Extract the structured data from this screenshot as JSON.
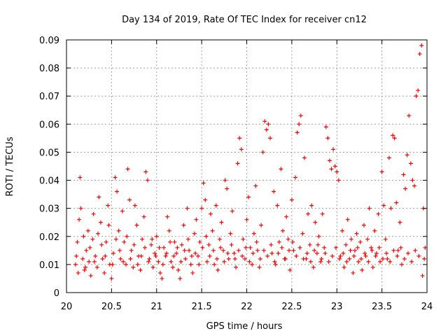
{
  "chart_data": {
    "type": "scatter",
    "title": "Day 134 of 2019, Rate Of TEC Index for receiver cn12",
    "xlabel": "GPS time / hours",
    "ylabel": "ROTI / TECUs",
    "xlim": [
      20,
      24
    ],
    "ylim": [
      0,
      0.09
    ],
    "xticks": [
      20,
      20.5,
      21,
      21.5,
      22,
      22.5,
      23,
      23.5,
      24
    ],
    "xtick_labels": [
      "20",
      "20.5",
      "21",
      "21.5",
      "22",
      "22.5",
      "23",
      "23.5",
      "24"
    ],
    "yticks": [
      0,
      0.01,
      0.02,
      0.03,
      0.04,
      0.05,
      0.06,
      0.07,
      0.08,
      0.09
    ],
    "ytick_labels": [
      "0",
      "0.01",
      "0.02",
      "0.03",
      "0.04",
      "0.05",
      "0.06",
      "0.07",
      "0.08",
      "0.09"
    ],
    "grid": true,
    "marker": "plus",
    "color": "#ff0000",
    "series": [
      {
        "name": "ROTI",
        "points": [
          [
            20.1,
            0.01
          ],
          [
            20.12,
            0.018
          ],
          [
            20.14,
            0.026
          ],
          [
            20.15,
            0.041
          ],
          [
            20.16,
            0.03
          ],
          [
            20.18,
            0.012
          ],
          [
            20.2,
            0.008
          ],
          [
            20.22,
            0.015
          ],
          [
            20.24,
            0.022
          ],
          [
            20.25,
            0.011
          ],
          [
            20.27,
            0.006
          ],
          [
            20.29,
            0.019
          ],
          [
            20.3,
            0.028
          ],
          [
            20.32,
            0.013
          ],
          [
            20.34,
            0.009
          ],
          [
            20.36,
            0.034
          ],
          [
            20.38,
            0.025
          ],
          [
            20.4,
            0.012
          ],
          [
            20.42,
            0.007
          ],
          [
            20.44,
            0.018
          ],
          [
            20.46,
            0.031
          ],
          [
            20.48,
            0.01
          ],
          [
            20.5,
            0.005
          ],
          [
            20.52,
            0.014
          ],
          [
            20.54,
            0.041
          ],
          [
            20.56,
            0.036
          ],
          [
            20.58,
            0.022
          ],
          [
            20.6,
            0.012
          ],
          [
            20.62,
            0.029
          ],
          [
            20.64,
            0.018
          ],
          [
            20.66,
            0.01
          ],
          [
            20.68,
            0.044
          ],
          [
            20.7,
            0.033
          ],
          [
            20.72,
            0.015
          ],
          [
            20.74,
            0.009
          ],
          [
            20.76,
            0.031
          ],
          [
            20.78,
            0.024
          ],
          [
            20.8,
            0.013
          ],
          [
            20.82,
            0.008
          ],
          [
            20.84,
            0.019
          ],
          [
            20.86,
            0.027
          ],
          [
            20.88,
            0.043
          ],
          [
            20.9,
            0.04
          ],
          [
            20.92,
            0.012
          ],
          [
            20.94,
            0.017
          ],
          [
            20.96,
            0.009
          ],
          [
            20.98,
            0.014
          ],
          [
            21.0,
            0.02
          ],
          [
            21.02,
            0.011
          ],
          [
            21.04,
            0.007
          ],
          [
            21.06,
            0.005
          ],
          [
            21.08,
            0.016
          ],
          [
            21.1,
            0.013
          ],
          [
            21.12,
            0.027
          ],
          [
            21.14,
            0.022
          ],
          [
            21.16,
            0.011
          ],
          [
            21.18,
            0.009
          ],
          [
            21.2,
            0.018
          ],
          [
            21.22,
            0.014
          ],
          [
            21.24,
            0.008
          ],
          [
            21.26,
            0.005
          ],
          [
            21.28,
            0.017
          ],
          [
            21.3,
            0.024
          ],
          [
            21.32,
            0.012
          ],
          [
            21.34,
            0.03
          ],
          [
            21.36,
            0.015
          ],
          [
            21.38,
            0.01
          ],
          [
            21.4,
            0.007
          ],
          [
            21.42,
            0.021
          ],
          [
            21.44,
            0.026
          ],
          [
            21.46,
            0.013
          ],
          [
            21.48,
            0.018
          ],
          [
            21.5,
            0.03
          ],
          [
            21.52,
            0.039
          ],
          [
            21.54,
            0.033
          ],
          [
            21.56,
            0.011
          ],
          [
            21.58,
            0.017
          ],
          [
            21.6,
            0.028
          ],
          [
            21.62,
            0.022
          ],
          [
            21.64,
            0.01
          ],
          [
            21.66,
            0.031
          ],
          [
            21.68,
            0.008
          ],
          [
            21.7,
            0.019
          ],
          [
            21.72,
            0.025
          ],
          [
            21.74,
            0.015
          ],
          [
            21.76,
            0.04
          ],
          [
            21.78,
            0.037
          ],
          [
            21.8,
            0.012
          ],
          [
            21.82,
            0.021
          ],
          [
            21.84,
            0.029
          ],
          [
            21.86,
            0.014
          ],
          [
            21.88,
            0.009
          ],
          [
            21.9,
            0.046
          ],
          [
            21.92,
            0.055
          ],
          [
            21.94,
            0.051
          ],
          [
            21.96,
            0.019
          ],
          [
            21.98,
            0.012
          ],
          [
            22.0,
            0.026
          ],
          [
            22.02,
            0.034
          ],
          [
            22.04,
            0.016
          ],
          [
            22.06,
            0.01
          ],
          [
            22.08,
            0.021
          ],
          [
            22.1,
            0.038
          ],
          [
            22.12,
            0.015
          ],
          [
            22.14,
            0.009
          ],
          [
            22.16,
            0.024
          ],
          [
            22.18,
            0.05
          ],
          [
            22.2,
            0.061
          ],
          [
            22.22,
            0.058
          ],
          [
            22.24,
            0.06
          ],
          [
            22.26,
            0.055
          ],
          [
            22.28,
            0.014
          ],
          [
            22.3,
            0.036
          ],
          [
            22.32,
            0.01
          ],
          [
            22.34,
            0.031
          ],
          [
            22.36,
            0.018
          ],
          [
            22.38,
            0.044
          ],
          [
            22.4,
            0.022
          ],
          [
            22.42,
            0.012
          ],
          [
            22.44,
            0.027
          ],
          [
            22.46,
            0.019
          ],
          [
            22.48,
            0.008
          ],
          [
            22.5,
            0.033
          ],
          [
            22.52,
            0.015
          ],
          [
            22.54,
            0.041
          ],
          [
            22.56,
            0.057
          ],
          [
            22.58,
            0.06
          ],
          [
            22.6,
            0.063
          ],
          [
            22.62,
            0.021
          ],
          [
            22.64,
            0.048
          ],
          [
            22.66,
            0.012
          ],
          [
            22.68,
            0.028
          ],
          [
            22.7,
            0.017
          ],
          [
            22.72,
            0.031
          ],
          [
            22.74,
            0.009
          ],
          [
            22.76,
            0.025
          ],
          [
            22.78,
            0.014
          ],
          [
            22.8,
            0.02
          ],
          [
            22.82,
            0.011
          ],
          [
            22.84,
            0.028
          ],
          [
            22.86,
            0.016
          ],
          [
            22.88,
            0.059
          ],
          [
            22.9,
            0.055
          ],
          [
            22.92,
            0.047
          ],
          [
            22.94,
            0.044
          ],
          [
            22.96,
            0.051
          ],
          [
            22.98,
            0.045
          ],
          [
            23.0,
            0.043
          ],
          [
            23.02,
            0.04
          ],
          [
            23.04,
            0.013
          ],
          [
            23.06,
            0.022
          ],
          [
            23.08,
            0.009
          ],
          [
            23.1,
            0.017
          ],
          [
            23.12,
            0.026
          ],
          [
            23.14,
            0.012
          ],
          [
            23.16,
            0.019
          ],
          [
            23.18,
            0.007
          ],
          [
            23.2,
            0.015
          ],
          [
            23.22,
            0.021
          ],
          [
            23.24,
            0.011
          ],
          [
            23.26,
            0.018
          ],
          [
            23.28,
            0.008
          ],
          [
            23.3,
            0.024
          ],
          [
            23.32,
            0.013
          ],
          [
            23.34,
            0.019
          ],
          [
            23.36,
            0.03
          ],
          [
            23.38,
            0.016
          ],
          [
            23.4,
            0.009
          ],
          [
            23.42,
            0.022
          ],
          [
            23.44,
            0.014
          ],
          [
            23.46,
            0.028
          ],
          [
            23.48,
            0.011
          ],
          [
            23.5,
            0.043
          ],
          [
            23.52,
            0.031
          ],
          [
            23.54,
            0.019
          ],
          [
            23.56,
            0.012
          ],
          [
            23.58,
            0.048
          ],
          [
            23.6,
            0.03
          ],
          [
            23.62,
            0.056
          ],
          [
            23.64,
            0.055
          ],
          [
            23.66,
            0.032
          ],
          [
            23.68,
            0.015
          ],
          [
            23.7,
            0.025
          ],
          [
            23.72,
            0.01
          ],
          [
            23.74,
            0.042
          ],
          [
            23.76,
            0.037
          ],
          [
            23.78,
            0.049
          ],
          [
            23.8,
            0.063
          ],
          [
            23.82,
            0.046
          ],
          [
            23.84,
            0.04
          ],
          [
            23.86,
            0.038
          ],
          [
            23.88,
            0.07
          ],
          [
            23.9,
            0.072
          ],
          [
            23.92,
            0.085
          ],
          [
            23.94,
            0.088
          ],
          [
            23.96,
            0.03
          ],
          [
            23.98,
            0.016
          ],
          [
            20.11,
            0.013
          ],
          [
            20.13,
            0.007
          ],
          [
            20.19,
            0.02
          ],
          [
            20.21,
            0.009
          ],
          [
            20.26,
            0.016
          ],
          [
            20.31,
            0.011
          ],
          [
            20.35,
            0.021
          ],
          [
            20.39,
            0.017
          ],
          [
            20.43,
            0.013
          ],
          [
            20.47,
            0.024
          ],
          [
            20.51,
            0.01
          ],
          [
            20.55,
            0.019
          ],
          [
            20.59,
            0.015
          ],
          [
            20.63,
            0.011
          ],
          [
            20.67,
            0.02
          ],
          [
            20.71,
            0.012
          ],
          [
            20.75,
            0.017
          ],
          [
            20.79,
            0.01
          ],
          [
            20.83,
            0.013
          ],
          [
            20.87,
            0.016
          ],
          [
            20.91,
            0.011
          ],
          [
            20.95,
            0.019
          ],
          [
            20.99,
            0.013
          ],
          [
            21.03,
            0.016
          ],
          [
            21.07,
            0.01
          ],
          [
            21.11,
            0.014
          ],
          [
            21.15,
            0.018
          ],
          [
            21.19,
            0.013
          ],
          [
            21.23,
            0.016
          ],
          [
            21.27,
            0.011
          ],
          [
            21.31,
            0.015
          ],
          [
            21.35,
            0.019
          ],
          [
            21.39,
            0.013
          ],
          [
            21.43,
            0.014
          ],
          [
            21.47,
            0.01
          ],
          [
            21.51,
            0.016
          ],
          [
            21.55,
            0.02
          ],
          [
            21.59,
            0.013
          ],
          [
            21.63,
            0.015
          ],
          [
            21.67,
            0.012
          ],
          [
            21.71,
            0.016
          ],
          [
            21.75,
            0.011
          ],
          [
            21.79,
            0.014
          ],
          [
            21.83,
            0.017
          ],
          [
            21.87,
            0.012
          ],
          [
            21.91,
            0.015
          ],
          [
            21.95,
            0.013
          ],
          [
            21.99,
            0.016
          ],
          [
            22.03,
            0.011
          ],
          [
            22.07,
            0.014
          ],
          [
            22.11,
            0.018
          ],
          [
            22.15,
            0.012
          ],
          [
            22.19,
            0.015
          ],
          [
            22.23,
            0.013
          ],
          [
            22.27,
            0.017
          ],
          [
            22.31,
            0.011
          ],
          [
            22.35,
            0.014
          ],
          [
            22.39,
            0.016
          ],
          [
            22.43,
            0.012
          ],
          [
            22.47,
            0.015
          ],
          [
            22.51,
            0.018
          ],
          [
            22.55,
            0.013
          ],
          [
            22.59,
            0.016
          ],
          [
            22.63,
            0.012
          ],
          [
            22.67,
            0.014
          ],
          [
            22.71,
            0.011
          ],
          [
            22.75,
            0.015
          ],
          [
            22.79,
            0.017
          ],
          [
            22.83,
            0.012
          ],
          [
            22.87,
            0.014
          ],
          [
            22.91,
            0.011
          ],
          [
            22.95,
            0.013
          ],
          [
            22.99,
            0.016
          ],
          [
            23.03,
            0.012
          ],
          [
            23.07,
            0.014
          ],
          [
            23.11,
            0.011
          ],
          [
            23.15,
            0.015
          ],
          [
            23.19,
            0.013
          ],
          [
            23.23,
            0.016
          ],
          [
            23.27,
            0.012
          ],
          [
            23.31,
            0.014
          ],
          [
            23.35,
            0.011
          ],
          [
            23.39,
            0.015
          ],
          [
            23.43,
            0.013
          ],
          [
            23.47,
            0.016
          ],
          [
            23.51,
            0.012
          ],
          [
            23.55,
            0.014
          ],
          [
            23.59,
            0.011
          ],
          [
            23.63,
            0.015
          ],
          [
            23.67,
            0.013
          ],
          [
            23.71,
            0.016
          ],
          [
            23.75,
            0.012
          ],
          [
            23.79,
            0.014
          ],
          [
            23.83,
            0.011
          ],
          [
            23.87,
            0.015
          ],
          [
            23.91,
            0.013
          ],
          [
            23.95,
            0.006
          ],
          [
            23.97,
            0.012
          ]
        ]
      }
    ]
  }
}
